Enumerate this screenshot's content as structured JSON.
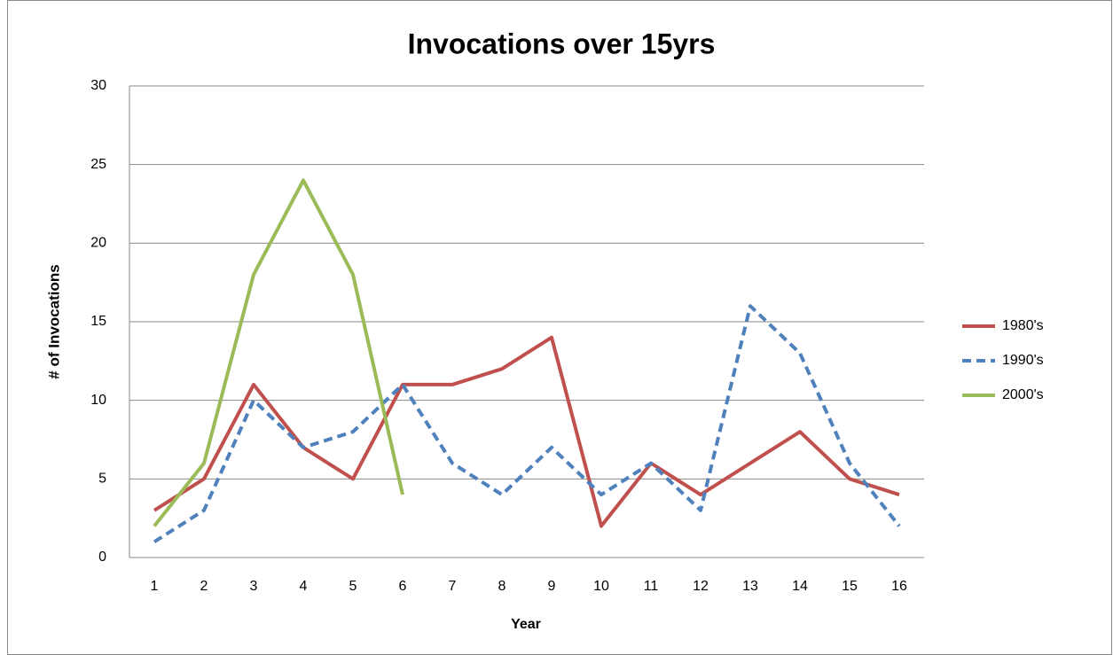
{
  "chart_data": {
    "type": "line",
    "title": "Invocations over 15yrs",
    "x_label": "Year",
    "y_label": "# of Invocations",
    "categories": [
      "1",
      "2",
      "3",
      "4",
      "5",
      "6",
      "7",
      "8",
      "9",
      "10",
      "11",
      "12",
      "13",
      "14",
      "15",
      "16"
    ],
    "series": [
      {
        "name": "1980's",
        "color": "#c0504d",
        "dash": false,
        "values": [
          3,
          5,
          11,
          7,
          5,
          11,
          11,
          12,
          14,
          2,
          6,
          4,
          6,
          8,
          5,
          4
        ]
      },
      {
        "name": "1990's",
        "color": "#4f81bd",
        "dash": true,
        "values": [
          1,
          3,
          10,
          7,
          8,
          11,
          6,
          4,
          7,
          4,
          6,
          3,
          16,
          13,
          6,
          2
        ]
      },
      {
        "name": "2000's",
        "color": "#9bbb59",
        "dash": false,
        "values": [
          2,
          6,
          18,
          24,
          18,
          4,
          null,
          null,
          null,
          null,
          null,
          null,
          null,
          null,
          null,
          null
        ]
      }
    ],
    "ylim": [
      0,
      30
    ],
    "yticks": [
      0,
      5,
      10,
      15,
      20,
      25,
      30
    ],
    "grid": true,
    "legend": "right"
  }
}
